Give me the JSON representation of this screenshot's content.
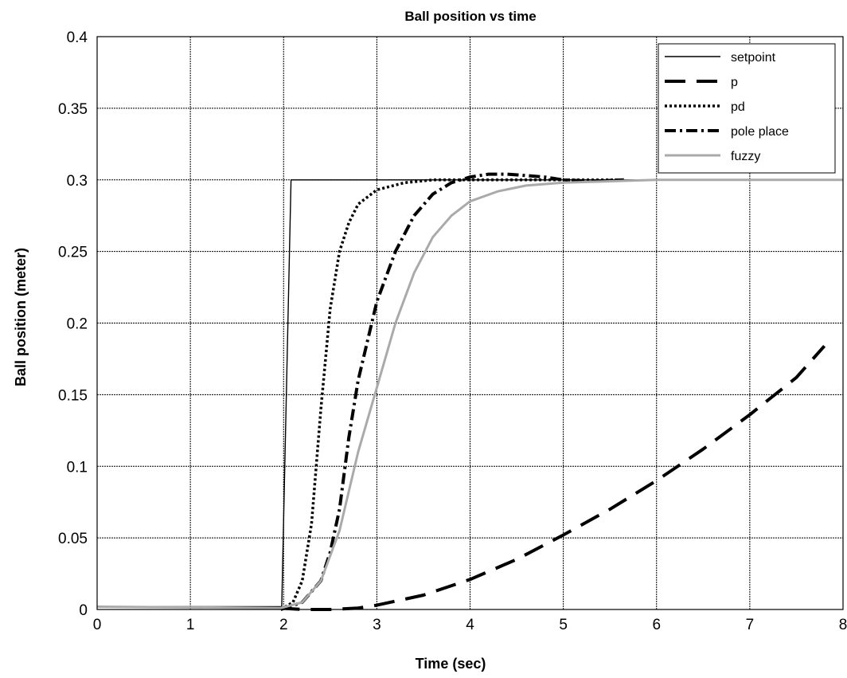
{
  "chart_data": {
    "type": "line",
    "title": "Ball position vs time",
    "xlabel": "Time  (sec)",
    "ylabel": "Ball position (meter)",
    "xlim": [
      0,
      8
    ],
    "ylim": [
      0,
      0.4
    ],
    "x_ticks": [
      "0",
      "1",
      "2",
      "3",
      "4",
      "5",
      "6",
      "7",
      "8"
    ],
    "y_ticks": [
      "0",
      "0.05",
      "0.1",
      "0.15",
      "0.2",
      "0.25",
      "0.3",
      "0.35",
      "0.4"
    ],
    "grid": true,
    "legend_position": "top-right",
    "series": [
      {
        "name": "setpoint",
        "color": "#000000",
        "style": "solid",
        "points": [
          [
            0,
            0.002
          ],
          [
            1.98,
            0.002
          ],
          [
            2.08,
            0.3
          ],
          [
            8,
            0.3
          ]
        ]
      },
      {
        "name": "p",
        "color": "#000000",
        "style": "dashed",
        "points": [
          [
            1.95,
            0.001
          ],
          [
            2.2,
            0
          ],
          [
            2.5,
            0
          ],
          [
            2.8,
            0.001
          ],
          [
            3.0,
            0.003
          ],
          [
            3.5,
            0.01
          ],
          [
            4.0,
            0.021
          ],
          [
            4.5,
            0.035
          ],
          [
            5.0,
            0.052
          ],
          [
            5.5,
            0.07
          ],
          [
            6.0,
            0.09
          ],
          [
            6.5,
            0.112
          ],
          [
            7.0,
            0.136
          ],
          [
            7.5,
            0.162
          ],
          [
            7.8,
            0.184
          ]
        ]
      },
      {
        "name": "pd",
        "color": "#000000",
        "style": "dotted",
        "points": [
          [
            1.97,
            0
          ],
          [
            2.1,
            0.005
          ],
          [
            2.2,
            0.02
          ],
          [
            2.3,
            0.06
          ],
          [
            2.4,
            0.14
          ],
          [
            2.5,
            0.21
          ],
          [
            2.6,
            0.25
          ],
          [
            2.7,
            0.27
          ],
          [
            2.8,
            0.283
          ],
          [
            3.0,
            0.293
          ],
          [
            3.3,
            0.298
          ],
          [
            3.6,
            0.3
          ],
          [
            4.0,
            0.3
          ],
          [
            5.0,
            0.3
          ],
          [
            5.65,
            0.3
          ]
        ]
      },
      {
        "name": "pole place",
        "color": "#000000",
        "style": "dashdot",
        "points": [
          [
            1.97,
            0
          ],
          [
            2.2,
            0.005
          ],
          [
            2.4,
            0.02
          ],
          [
            2.5,
            0.04
          ],
          [
            2.6,
            0.07
          ],
          [
            2.7,
            0.12
          ],
          [
            2.8,
            0.16
          ],
          [
            3.0,
            0.215
          ],
          [
            3.2,
            0.25
          ],
          [
            3.4,
            0.275
          ],
          [
            3.6,
            0.29
          ],
          [
            3.8,
            0.298
          ],
          [
            4.0,
            0.302
          ],
          [
            4.2,
            0.304
          ],
          [
            4.4,
            0.304
          ],
          [
            4.6,
            0.303
          ],
          [
            4.8,
            0.302
          ],
          [
            5.0,
            0.3
          ],
          [
            5.3,
            0.299
          ],
          [
            5.65,
            0.3
          ]
        ]
      },
      {
        "name": "fuzzy",
        "color": "#aaaaaa",
        "style": "solid",
        "points": [
          [
            0,
            0.002
          ],
          [
            1.97,
            0.001
          ],
          [
            2.2,
            0.005
          ],
          [
            2.4,
            0.02
          ],
          [
            2.6,
            0.055
          ],
          [
            2.8,
            0.11
          ],
          [
            3.0,
            0.155
          ],
          [
            3.2,
            0.2
          ],
          [
            3.4,
            0.235
          ],
          [
            3.6,
            0.26
          ],
          [
            3.8,
            0.275
          ],
          [
            4.0,
            0.285
          ],
          [
            4.3,
            0.292
          ],
          [
            4.6,
            0.296
          ],
          [
            5.0,
            0.298
          ],
          [
            5.5,
            0.299
          ],
          [
            6.0,
            0.3
          ],
          [
            8,
            0.3
          ]
        ]
      }
    ]
  }
}
